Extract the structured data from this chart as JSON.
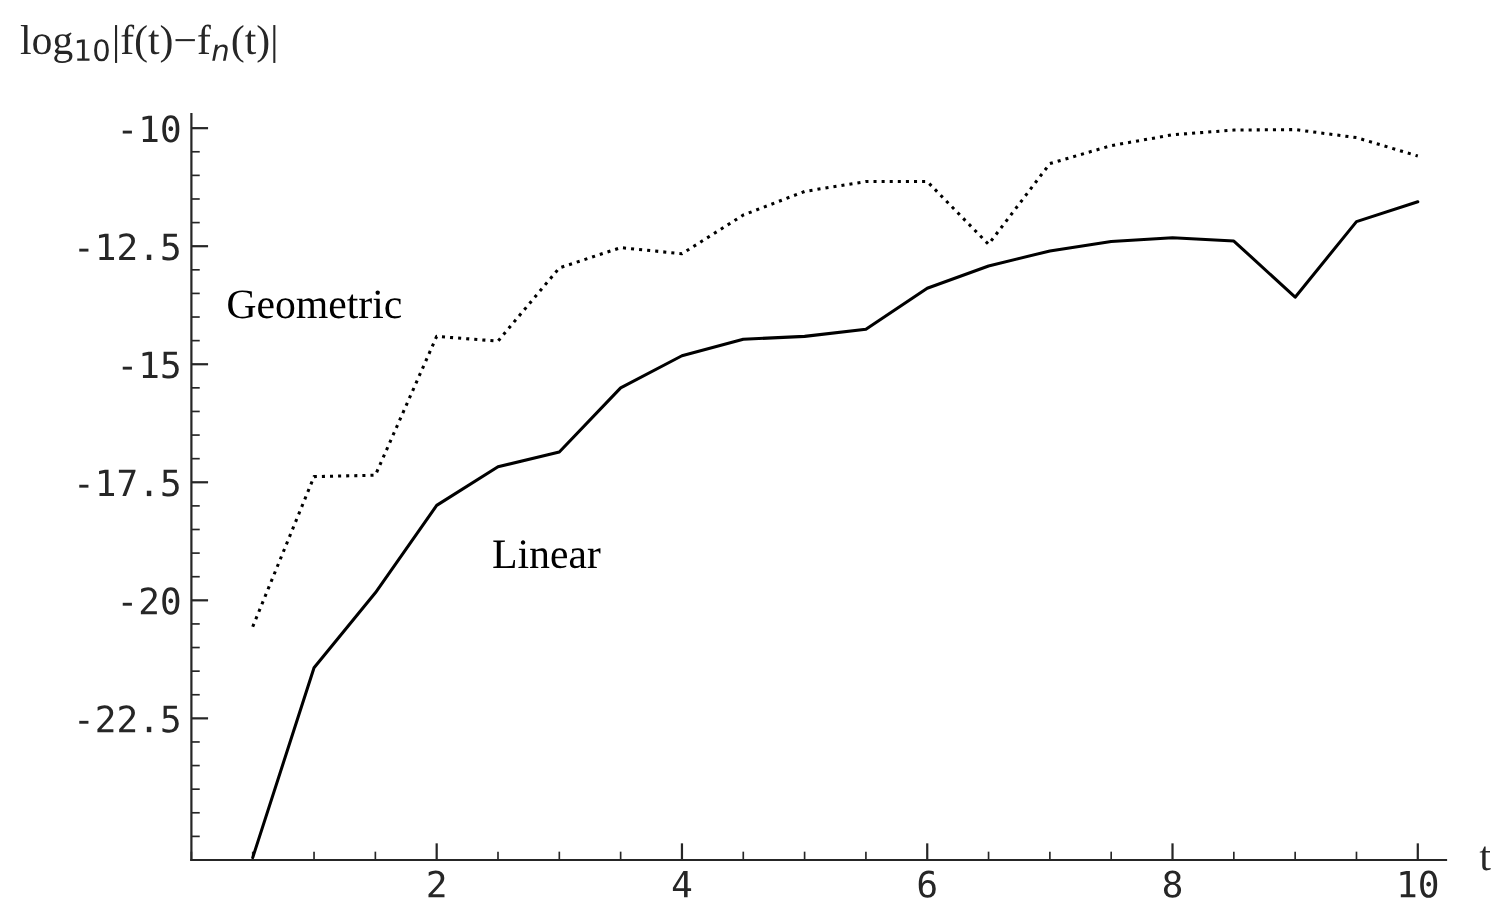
{
  "chart_data": {
    "type": "line",
    "ylabel": "log$_{10}$|f(t)−f$_{n}$(t)|",
    "xlabel": "t",
    "x": [
      0.5,
      1,
      1.5,
      2,
      2.5,
      3,
      3.5,
      4,
      4.5,
      5,
      5.5,
      6,
      6.5,
      7,
      7.5,
      8,
      8.5,
      9,
      9.5,
      10
    ],
    "series": [
      {
        "name": "Geometric",
        "color": "#000000",
        "line_style": "dotted",
        "values": [
          -20.56,
          -17.38,
          -17.35,
          -14.41,
          -14.51,
          -12.96,
          -12.53,
          -12.66,
          -11.84,
          -11.34,
          -11.13,
          -11.13,
          -12.46,
          -10.75,
          -10.37,
          -10.14,
          -10.04,
          -10.03,
          -10.2,
          -10.59
        ]
      },
      {
        "name": "Linear",
        "color": "#000000",
        "line_style": "solid",
        "values": [
          -25.45,
          -21.43,
          -19.84,
          -17.99,
          -17.17,
          -16.86,
          -15.5,
          -14.82,
          -14.47,
          -14.41,
          -14.26,
          -13.39,
          -12.92,
          -12.6,
          -12.4,
          -12.32,
          -12.39,
          -13.58,
          -11.98,
          -11.56
        ]
      }
    ],
    "xlim": [
      0,
      10.23
    ],
    "ylim": [
      -25.5,
      -9.7
    ],
    "xticks": [
      2,
      4,
      6,
      8,
      10
    ],
    "yticks": [
      -10,
      -12.5,
      -15,
      -17.5,
      -20,
      -22.5
    ],
    "grid": false,
    "legend": false,
    "marker": "none"
  }
}
